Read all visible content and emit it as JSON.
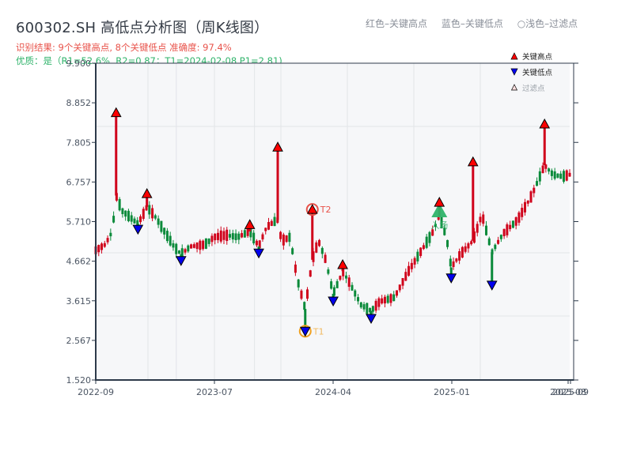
{
  "header": {
    "title": "600302.SH 高低点分析图（周K线图）",
    "result_line": "识别结果: 9个关键高点, 8个关键低点   准确度: 97.4%",
    "quality_line": "优质：是（R1=52.6%, R2=0.87；T1=2024-02-08 P1=2.81)",
    "color_legend": [
      "红色–关键高点",
      "蓝色–关键低点",
      "○浅色–过滤点"
    ]
  },
  "colors": {
    "up": "#d0021b",
    "down": "#0a8a3a",
    "key_high": "#ff0000",
    "key_low": "#0000ee",
    "title": "#333a44",
    "result": "#e8524a",
    "quality": "#2fb36a",
    "entry": "#2fb36a",
    "t1_ring": "#f0a020",
    "t2_ring": "#e8524a",
    "plot_bg": "#f6f7f9",
    "grid": "#e2e4e8",
    "axis": "#2d3a4a"
  },
  "chart_data": {
    "type": "candlestick",
    "title": "600302.SH 高低点分析图（周K线图）",
    "xlabel": "",
    "ylabel": "",
    "ylim": [
      1.52,
      9.9
    ],
    "yticks": [
      "9.900",
      "8.852",
      "7.805",
      "6.757",
      "5.710",
      "4.662",
      "3.615",
      "2.567",
      "1.520"
    ],
    "xticks": [
      "2022-09",
      "2023-07",
      "2024-04",
      "2025-01",
      "2025-08",
      "2025-09"
    ],
    "grid": true,
    "legend": {
      "position": "top-right",
      "entries": [
        "关键高点",
        "关键低点",
        "过滤点"
      ]
    },
    "key_highs": [
      {
        "x": 0.043,
        "value": 8.59
      },
      {
        "x": 0.108,
        "value": 6.45
      },
      {
        "x": 0.325,
        "value": 5.63
      },
      {
        "x": 0.384,
        "value": 7.68
      },
      {
        "x": 0.457,
        "value": 6.03,
        "label": "T2"
      },
      {
        "x": 0.521,
        "value": 4.57
      },
      {
        "x": 0.725,
        "value": 6.22
      },
      {
        "x": 0.796,
        "value": 7.29
      },
      {
        "x": 0.947,
        "value": 8.29
      }
    ],
    "key_lows": [
      {
        "x": 0.089,
        "value": 5.51
      },
      {
        "x": 0.18,
        "value": 4.68
      },
      {
        "x": 0.344,
        "value": 4.88
      },
      {
        "x": 0.442,
        "value": 2.81,
        "label": "T1"
      },
      {
        "x": 0.501,
        "value": 3.61
      },
      {
        "x": 0.581,
        "value": 3.15
      },
      {
        "x": 0.75,
        "value": 4.22
      },
      {
        "x": 0.836,
        "value": 4.03
      }
    ],
    "entry_marker": {
      "x": 0.725,
      "value": 5.95,
      "label": "入场"
    },
    "price_path": [
      [
        0.0,
        4.95
      ],
      [
        0.02,
        5.1
      ],
      [
        0.035,
        5.45
      ],
      [
        0.043,
        6.4
      ],
      [
        0.055,
        6.0
      ],
      [
        0.07,
        5.85
      ],
      [
        0.089,
        5.65
      ],
      [
        0.1,
        5.9
      ],
      [
        0.108,
        6.1
      ],
      [
        0.125,
        5.85
      ],
      [
        0.145,
        5.45
      ],
      [
        0.165,
        5.05
      ],
      [
        0.18,
        4.85
      ],
      [
        0.2,
        5.05
      ],
      [
        0.23,
        5.1
      ],
      [
        0.25,
        5.3
      ],
      [
        0.275,
        5.35
      ],
      [
        0.3,
        5.3
      ],
      [
        0.325,
        5.45
      ],
      [
        0.344,
        5.05
      ],
      [
        0.36,
        5.55
      ],
      [
        0.375,
        5.7
      ],
      [
        0.384,
        5.75
      ],
      [
        0.392,
        5.2
      ],
      [
        0.41,
        5.3
      ],
      [
        0.425,
        4.2
      ],
      [
        0.442,
        3.4
      ],
      [
        0.457,
        4.7
      ],
      [
        0.47,
        5.2
      ],
      [
        0.485,
        4.7
      ],
      [
        0.501,
        3.8
      ],
      [
        0.515,
        4.2
      ],
      [
        0.521,
        4.4
      ],
      [
        0.535,
        4.1
      ],
      [
        0.56,
        3.5
      ],
      [
        0.581,
        3.35
      ],
      [
        0.6,
        3.6
      ],
      [
        0.63,
        3.7
      ],
      [
        0.66,
        4.4
      ],
      [
        0.69,
        5.0
      ],
      [
        0.71,
        5.4
      ],
      [
        0.725,
        5.85
      ],
      [
        0.74,
        5.3
      ],
      [
        0.75,
        4.5
      ],
      [
        0.77,
        4.85
      ],
      [
        0.796,
        5.2
      ],
      [
        0.815,
        5.9
      ],
      [
        0.836,
        4.9
      ],
      [
        0.86,
        5.4
      ],
      [
        0.89,
        5.75
      ],
      [
        0.92,
        6.4
      ],
      [
        0.947,
        7.2
      ],
      [
        0.965,
        6.95
      ],
      [
        0.985,
        6.9
      ],
      [
        1.0,
        6.95
      ]
    ]
  }
}
